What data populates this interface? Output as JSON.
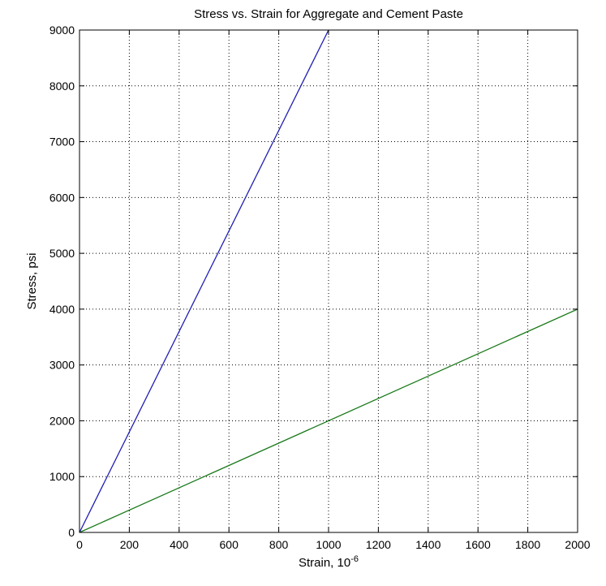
{
  "chart_data": {
    "type": "line",
    "title": "Stress vs. Strain for Aggregate and Cement Paste",
    "xlabel": "Strain, 10",
    "xlabel_superscript": "-6",
    "ylabel": "Stress, psi",
    "xlim": [
      0,
      2000
    ],
    "ylim": [
      0,
      9000
    ],
    "xticks": [
      0,
      200,
      400,
      600,
      800,
      1000,
      1200,
      1400,
      1600,
      1800,
      2000
    ],
    "yticks": [
      0,
      1000,
      2000,
      3000,
      4000,
      5000,
      6000,
      7000,
      8000,
      9000
    ],
    "xtick_labels": [
      "0",
      "200",
      "400",
      "600",
      "800",
      "1000",
      "1200",
      "1400",
      "1600",
      "1800",
      "2000"
    ],
    "ytick_labels": [
      "0",
      "1000",
      "2000",
      "3000",
      "4000",
      "5000",
      "6000",
      "7000",
      "8000",
      "9000"
    ],
    "grid": true,
    "series": [
      {
        "color": "#1f1fb4",
        "x": [
          0,
          1000
        ],
        "y": [
          0,
          9000
        ]
      },
      {
        "color": "#1a7a1a",
        "x": [
          0,
          2000
        ],
        "y": [
          0,
          4000
        ]
      }
    ]
  }
}
